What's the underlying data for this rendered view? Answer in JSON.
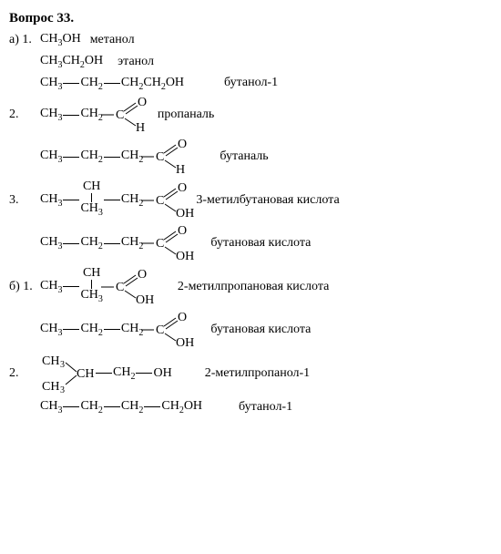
{
  "title": "Вопрос 33.",
  "rows": [
    {
      "lead": "а) 1.",
      "formula_simple": "CH3OH",
      "name": "метанол",
      "name_ml": 10
    },
    {
      "lead": "",
      "formula_simple": "CH3CH2OH",
      "name": "этанол",
      "name_ml": 16
    },
    {
      "lead": "",
      "chain": [
        "CH3",
        "CH2",
        "CH2CH2OH"
      ],
      "name": "бутанол-1",
      "name_ml": 44
    },
    {
      "lead": "2.",
      "chain": [
        "CH3",
        "CH2"
      ],
      "term_c": true,
      "term_top": "O",
      "term_bot": "H",
      "name": "пропаналь",
      "name_ml": 14
    },
    {
      "lead": "",
      "chain": [
        "CH3",
        "CH2",
        "CH2"
      ],
      "term_c": true,
      "term_top": "O",
      "term_bot": "H",
      "name": "бутаналь",
      "name_ml": 38
    },
    {
      "lead": "3.",
      "chain_branch": {
        "pre": [
          "CH3"
        ],
        "branch_down": "CH3",
        "post": [
          "CH2"
        ]
      },
      "term_c": true,
      "term_top": "O",
      "term_bot": "OH",
      "name": "3-метилбутановая кислота",
      "name_ml": 12
    },
    {
      "lead": "",
      "chain": [
        "CH3",
        "CH2",
        "CH2"
      ],
      "term_c": true,
      "term_top": "O",
      "term_bot": "OH",
      "name": "бутановая кислота",
      "name_ml": 28
    },
    {
      "lead": "б) 1.",
      "chain_branch": {
        "pre": [
          "CH3"
        ],
        "branch_down": "CH3",
        "post": []
      },
      "term_c": true,
      "term_top": "O",
      "term_bot": "OH",
      "name": "2-метилпропановая кислота",
      "name_ml": 36
    },
    {
      "lead": "",
      "chain": [
        "CH3",
        "CH2",
        "CH2"
      ],
      "term_c": true,
      "term_top": "O",
      "term_bot": "OH",
      "name": "бутановая кислота",
      "name_ml": 28
    },
    {
      "lead": "2.",
      "iso": {
        "top": "CH3",
        "bot": "CH3",
        "mid": "CH",
        "tail": [
          "CH2",
          "OH"
        ]
      },
      "name": "2-метилпропанол-1",
      "name_ml": 36
    },
    {
      "lead": "",
      "chain": [
        "CH3",
        "CH2",
        "CH2",
        "CH2OH"
      ],
      "name": "бутанол-1",
      "name_ml": 40
    }
  ],
  "colors": {
    "fg": "#000000",
    "bg": "#ffffff"
  }
}
